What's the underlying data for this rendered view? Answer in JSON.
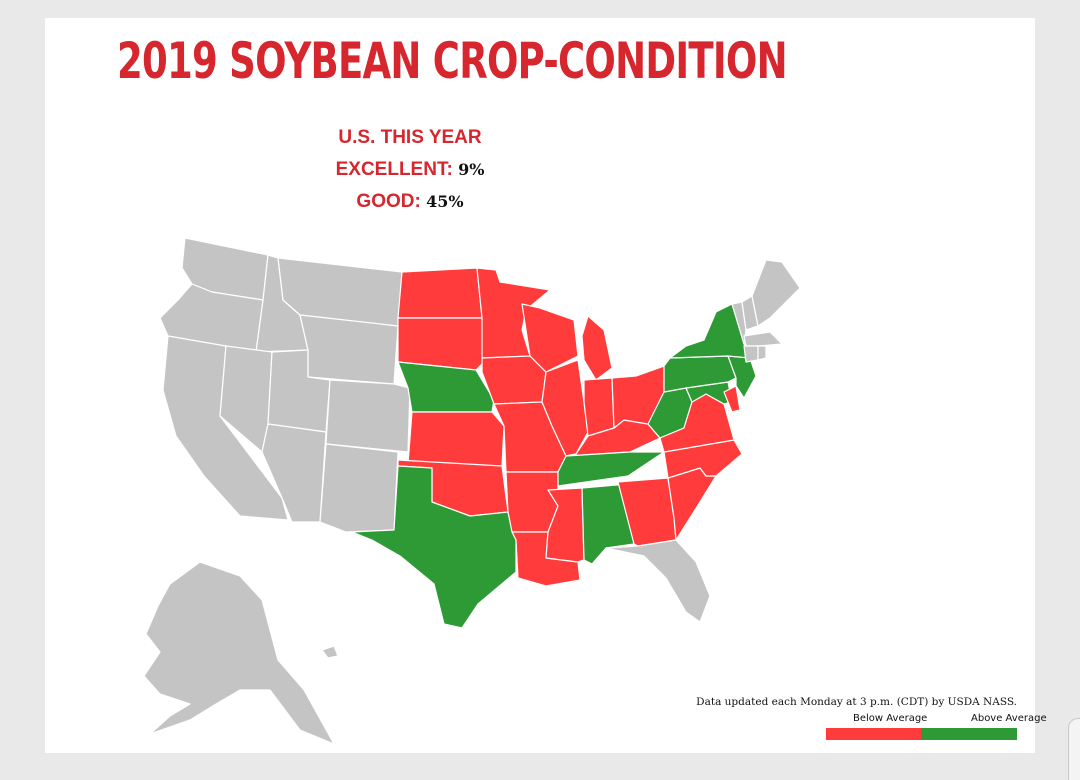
{
  "title": "2019 SOYBEAN CROP-CONDITION",
  "summary": {
    "heading": "U.S. THIS YEAR",
    "excellent_label": "EXCELLENT:",
    "excellent_value": "9%",
    "good_label": "GOOD:",
    "good_value": "45%"
  },
  "footnote": "Data updated each Monday at 3 p.m. (CDT) by USDA NASS.",
  "legend": {
    "below_label": "Below Average",
    "above_label": "Above Average"
  },
  "colors": {
    "title": "#d6262e",
    "below": "#ff3b3b",
    "above": "#2e9a35",
    "no_data": "#c4c4c4",
    "background": "#e9e9e9"
  },
  "states": {
    "below_average": [
      "North Dakota",
      "South Dakota",
      "Minnesota",
      "Iowa",
      "Wisconsin",
      "Michigan",
      "Illinois",
      "Indiana",
      "Ohio",
      "Missouri",
      "Kansas",
      "Oklahoma",
      "Arkansas",
      "Louisiana",
      "Mississippi",
      "Kentucky",
      "Georgia",
      "South Carolina",
      "North Carolina",
      "Virginia",
      "Delaware"
    ],
    "above_average": [
      "Nebraska",
      "Texas",
      "Tennessee",
      "Alabama",
      "New York",
      "Pennsylvania",
      "New Jersey",
      "West Virginia",
      "Maryland"
    ]
  }
}
